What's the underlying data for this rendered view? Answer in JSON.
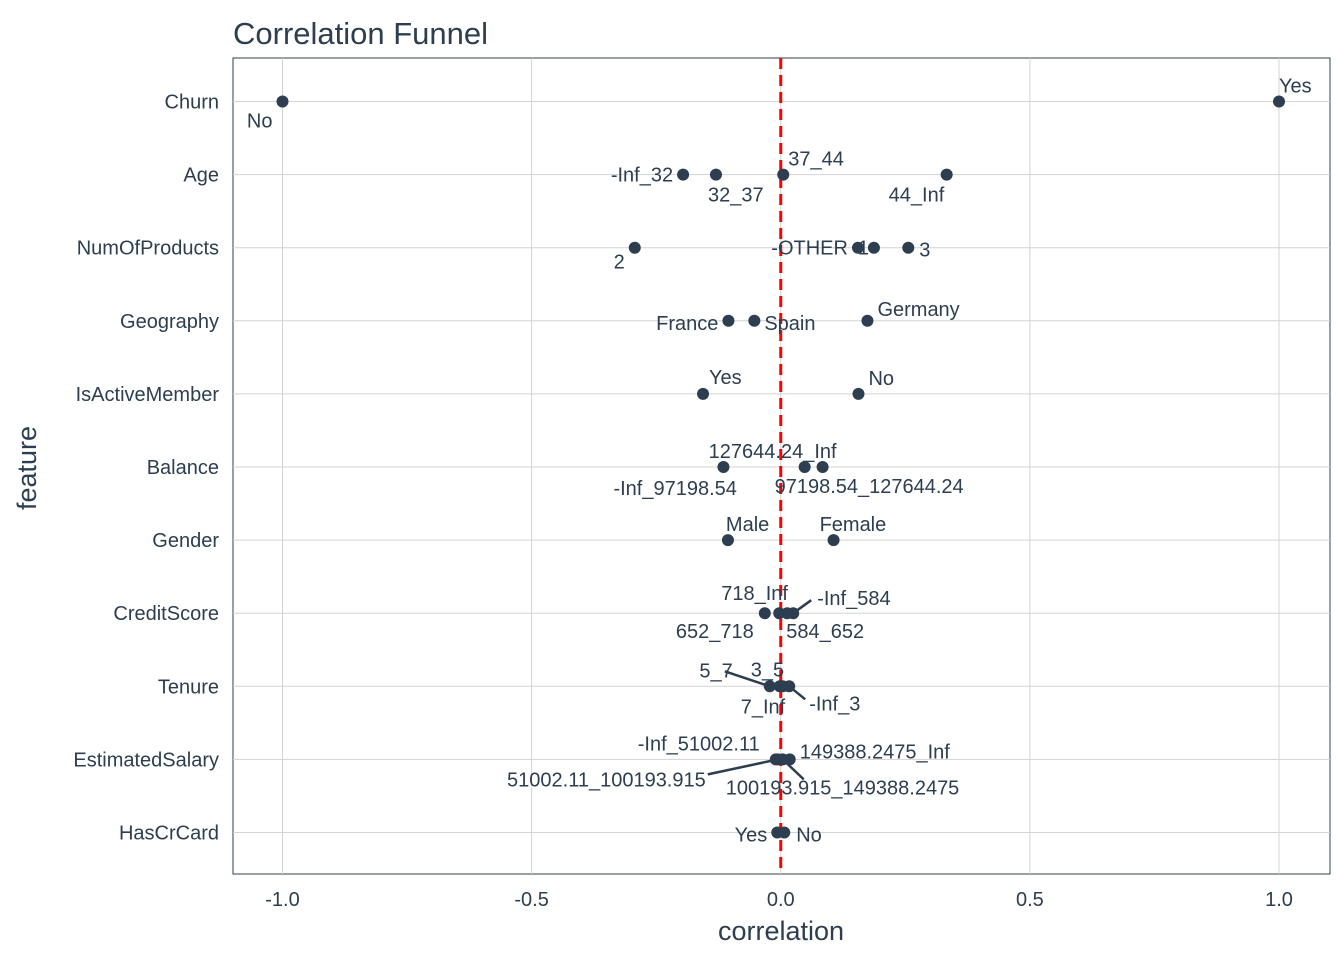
{
  "chart_data": {
    "type": "scatter",
    "title": "Correlation Funnel",
    "xlabel": "correlation",
    "ylabel": "feature",
    "xlim": [
      -1.1,
      1.1
    ],
    "x_ticks": [
      -1.0,
      -0.5,
      0.0,
      0.5,
      1.0
    ],
    "x_tick_labels": [
      "-1.0",
      "-0.5",
      "0.0",
      "0.5",
      "1.0"
    ],
    "grid": true,
    "reference_line": {
      "x": 0,
      "style": "dashed",
      "color": "#ff0000"
    },
    "colors": {
      "point": "#2c3e50",
      "text": "#2c3e50",
      "grid": "#d3d3d3",
      "reference": "#ff0000"
    },
    "features": [
      "Churn",
      "Age",
      "NumOfProducts",
      "Geography",
      "IsActiveMember",
      "Balance",
      "Gender",
      "CreditScore",
      "Tenure",
      "EstimatedSalary",
      "HasCrCard"
    ],
    "points": [
      {
        "feature": "Churn",
        "label": "No",
        "correlation": -1.0
      },
      {
        "feature": "Churn",
        "label": "Yes",
        "correlation": 1.0
      },
      {
        "feature": "Age",
        "label": "-Inf_32",
        "correlation": -0.196
      },
      {
        "feature": "Age",
        "label": "32_37",
        "correlation": -0.13
      },
      {
        "feature": "Age",
        "label": "37_44",
        "correlation": 0.005
      },
      {
        "feature": "Age",
        "label": "44_Inf",
        "correlation": 0.333
      },
      {
        "feature": "NumOfProducts",
        "label": "2",
        "correlation": -0.293
      },
      {
        "feature": "NumOfProducts",
        "label": "-OTHER",
        "correlation": 0.155
      },
      {
        "feature": "NumOfProducts",
        "label": "1",
        "correlation": 0.187
      },
      {
        "feature": "NumOfProducts",
        "label": "3",
        "correlation": 0.256
      },
      {
        "feature": "Geography",
        "label": "France",
        "correlation": -0.105
      },
      {
        "feature": "Geography",
        "label": "Spain",
        "correlation": -0.053
      },
      {
        "feature": "Geography",
        "label": "Germany",
        "correlation": 0.174
      },
      {
        "feature": "IsActiveMember",
        "label": "Yes",
        "correlation": -0.156
      },
      {
        "feature": "IsActiveMember",
        "label": "No",
        "correlation": 0.156
      },
      {
        "feature": "Balance",
        "label": "-Inf_97198.54",
        "correlation": -0.115
      },
      {
        "feature": "Balance",
        "label": "127644.24_Inf",
        "correlation": 0.048
      },
      {
        "feature": "Balance",
        "label": "97198.54_127644.24",
        "correlation": 0.084
      },
      {
        "feature": "Gender",
        "label": "Male",
        "correlation": -0.106
      },
      {
        "feature": "Gender",
        "label": "Female",
        "correlation": 0.106
      },
      {
        "feature": "CreditScore",
        "label": "652_718",
        "correlation": -0.032
      },
      {
        "feature": "CreditScore",
        "label": "718_Inf",
        "correlation": -0.003
      },
      {
        "feature": "CreditScore",
        "label": "584_652",
        "correlation": 0.013
      },
      {
        "feature": "CreditScore",
        "label": "-Inf_584",
        "correlation": 0.025
      },
      {
        "feature": "Tenure",
        "label": "5_7",
        "correlation": -0.022
      },
      {
        "feature": "Tenure",
        "label": "3_5",
        "correlation": -0.002
      },
      {
        "feature": "Tenure",
        "label": "7_Inf",
        "correlation": 0.004
      },
      {
        "feature": "Tenure",
        "label": "-Inf_3",
        "correlation": 0.017
      },
      {
        "feature": "EstimatedSalary",
        "label": "-Inf_51002.11",
        "correlation": -0.01
      },
      {
        "feature": "EstimatedSalary",
        "label": "51002.11_100193.915",
        "correlation": -0.006
      },
      {
        "feature": "EstimatedSalary",
        "label": "100193.915_149388.2475",
        "correlation": 0.004
      },
      {
        "feature": "EstimatedSalary",
        "label": "149388.2475_Inf",
        "correlation": 0.018
      },
      {
        "feature": "HasCrCard",
        "label": "Yes",
        "correlation": -0.007
      },
      {
        "feature": "HasCrCard",
        "label": "No",
        "correlation": 0.007
      }
    ]
  }
}
